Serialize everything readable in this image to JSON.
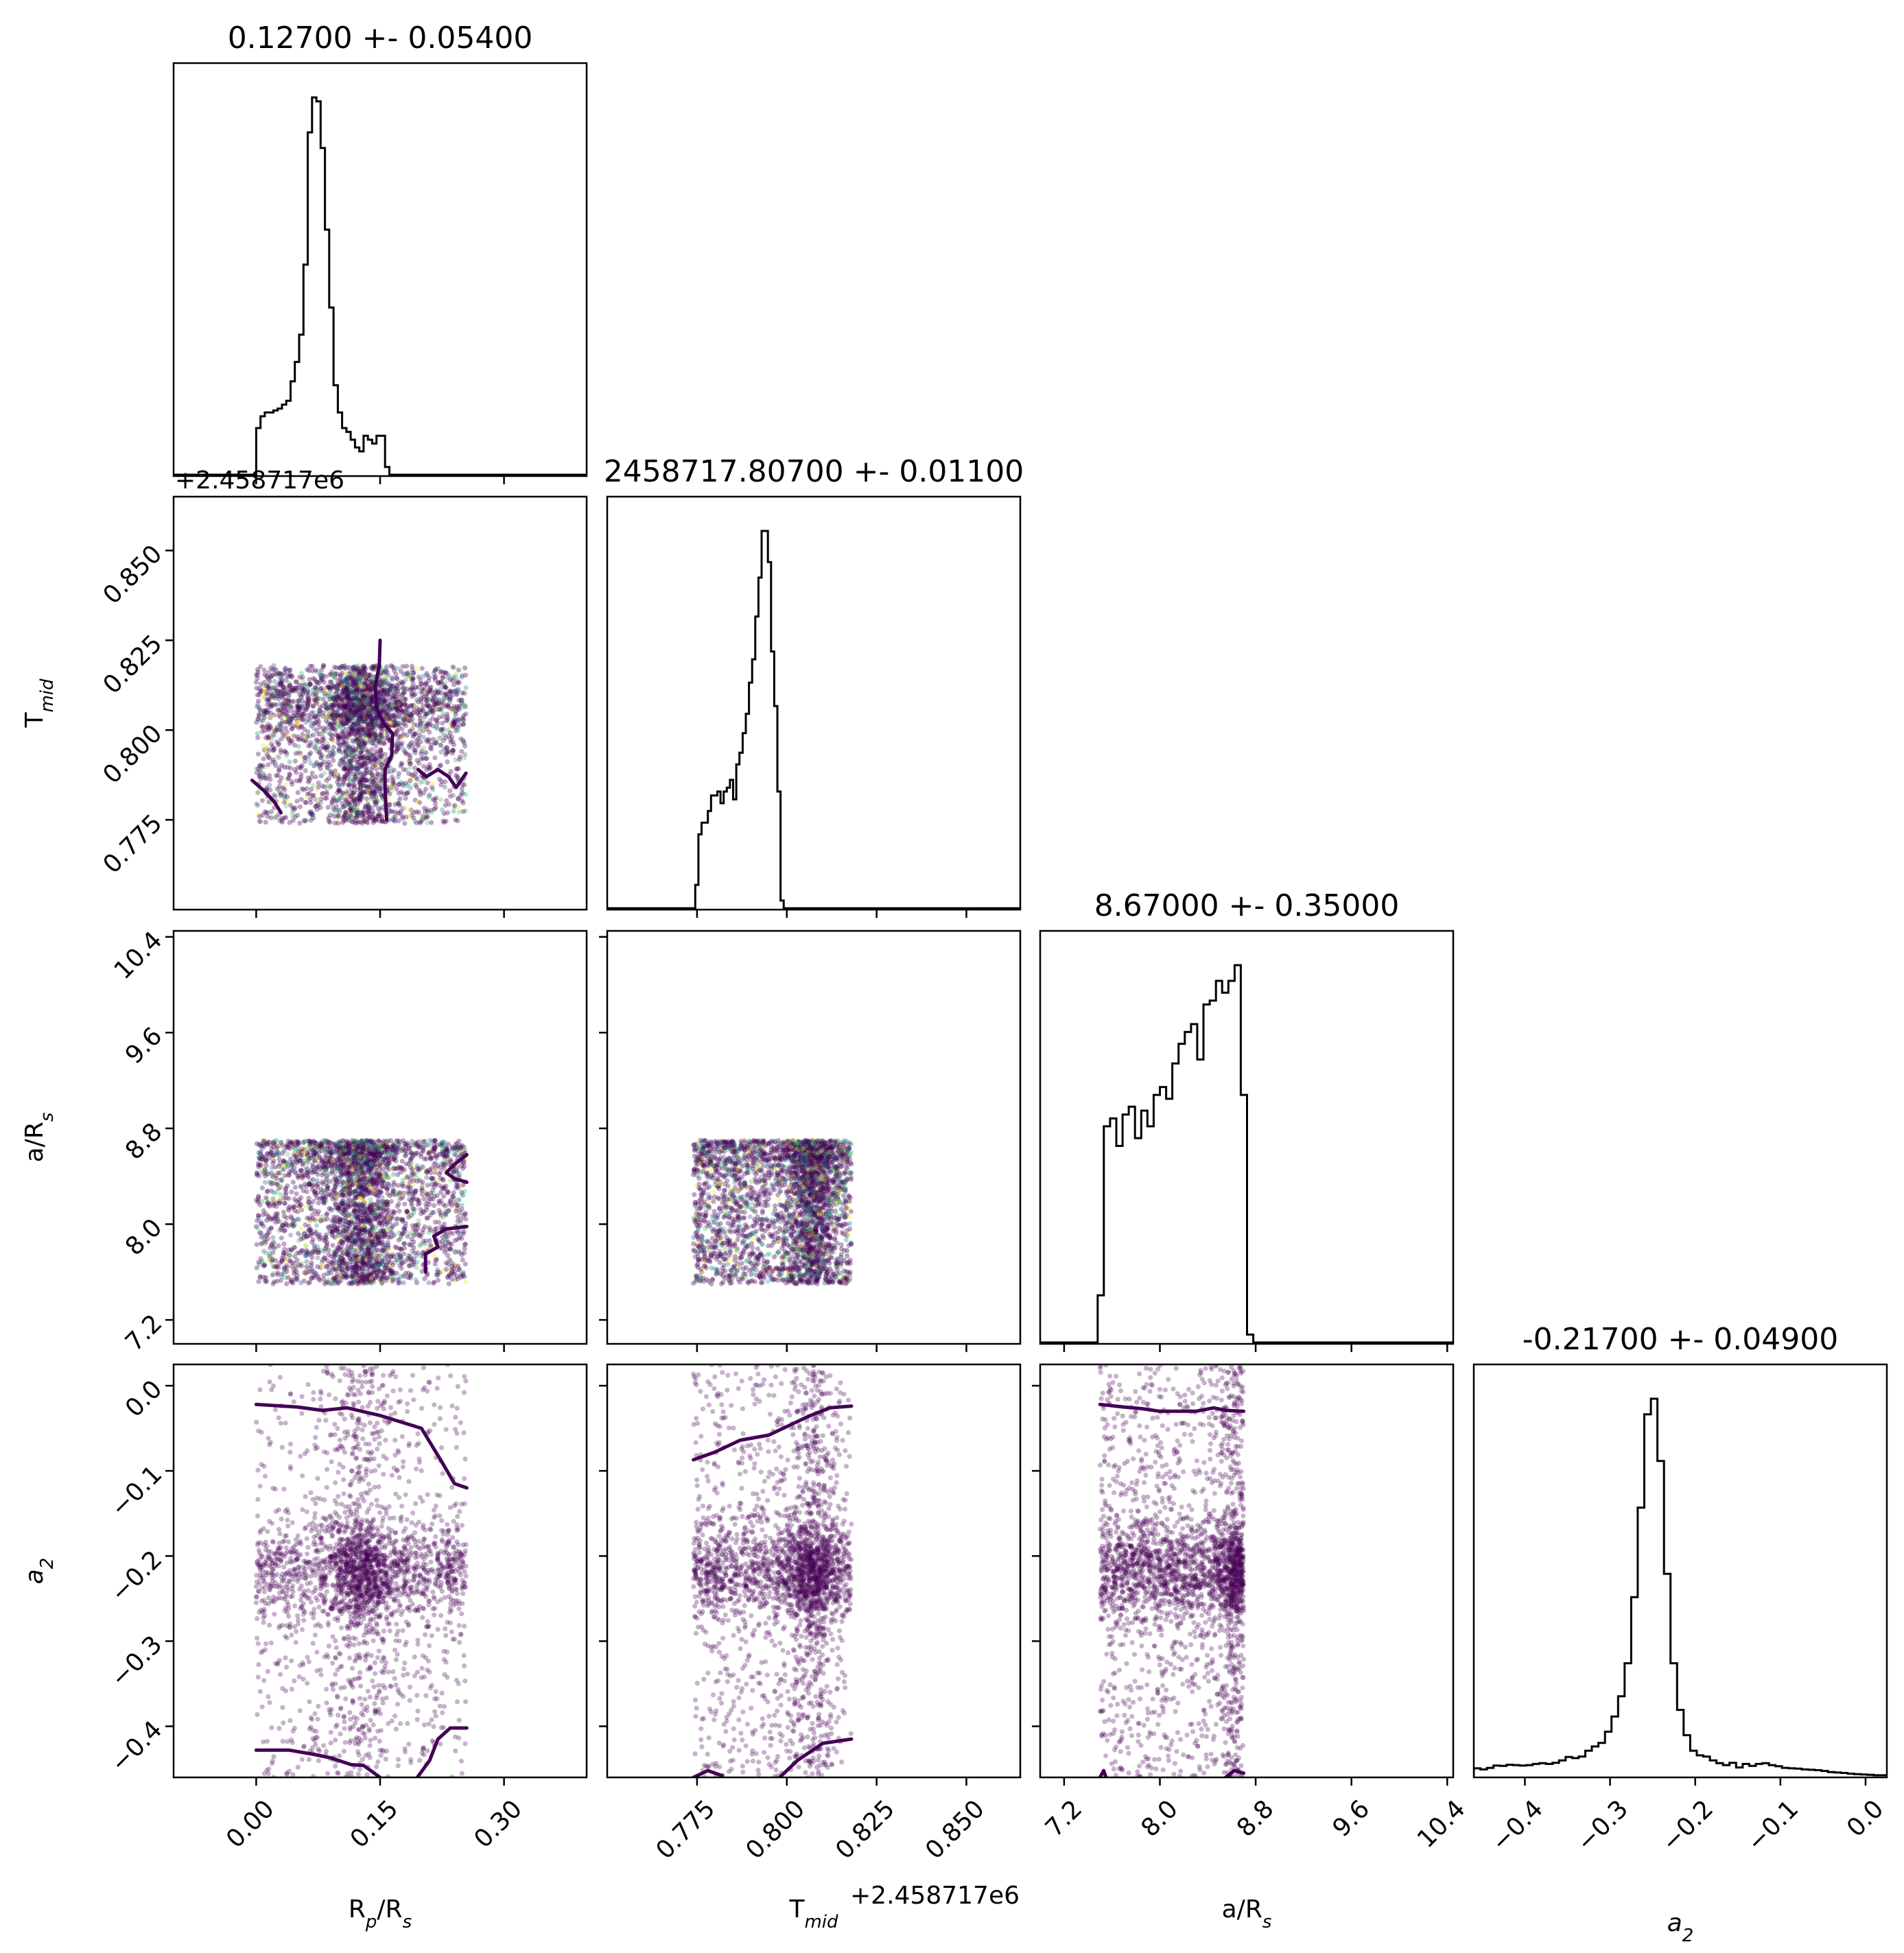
{
  "chart_data": {
    "type": "corner",
    "colors": {
      "axes": "#000000",
      "hist": "#000000",
      "contour": "#440154",
      "scatter_cmap": "viridis",
      "dense": "#440154"
    },
    "parameters": [
      {
        "key": "rp",
        "label": "R",
        "sub": "p",
        "label_tail": "/R",
        "sub2": "s",
        "range": [
          -0.1,
          0.4
        ],
        "ticks": [
          0.0,
          0.15,
          0.3
        ],
        "tick_labels": [
          "0.00",
          "0.15",
          "0.30"
        ],
        "title": "0.12700 +- 0.05400",
        "center": 0.127,
        "uniform": [
          0.0,
          0.254
        ]
      },
      {
        "key": "tmid",
        "label": "T",
        "sub": "mid",
        "label_tail": "",
        "sub2": "",
        "range": [
          0.75,
          0.865
        ],
        "ticks": [
          0.775,
          0.8,
          0.825,
          0.85
        ],
        "tick_labels": [
          "0.775",
          "0.800",
          "0.825",
          "0.850"
        ],
        "title": "2458717.80700 +- 0.01100",
        "center": 0.807,
        "uniform": [
          0.774,
          0.818
        ],
        "offset": "+2.458717e6"
      },
      {
        "key": "ars",
        "label": "a/R",
        "sub": "s",
        "label_tail": "",
        "sub2": "",
        "range": [
          7.0,
          10.45
        ],
        "ticks": [
          7.2,
          8.0,
          8.8,
          9.6,
          10.4
        ],
        "tick_labels": [
          "7.2",
          "8.0",
          "8.8",
          "9.6",
          "10.4"
        ],
        "title": "8.67000 +- 0.35000",
        "center": 8.67,
        "uniform": [
          7.5,
          8.7
        ]
      },
      {
        "key": "a2",
        "label": "a",
        "sub": "2",
        "label_tail": "",
        "sub2": "",
        "italic": true,
        "range": [
          -0.46,
          0.025
        ],
        "ticks": [
          -0.4,
          -0.3,
          -0.2,
          -0.1,
          0.0
        ],
        "tick_labels": [
          "−0.4",
          "−0.3",
          "−0.2",
          "−0.1",
          "0.0"
        ],
        "title": "-0.21700 +- 0.04900",
        "center": -0.217,
        "uniform": [
          -0.46,
          0.025
        ]
      }
    ],
    "histograms": [
      {
        "param": "rp",
        "edges_start": 0.0,
        "bin_width": 0.0052,
        "counts": [
          0.12,
          0.15,
          0.16,
          0.16,
          0.165,
          0.17,
          0.18,
          0.19,
          0.24,
          0.29,
          0.36,
          0.54,
          0.88,
          0.97,
          0.96,
          0.84,
          0.63,
          0.43,
          0.23,
          0.16,
          0.12,
          0.11,
          0.09,
          0.07,
          0.06,
          0.1,
          0.09,
          0.08,
          0.1,
          0.1,
          0.02
        ]
      },
      {
        "param": "tmid",
        "edges_start": 0.7745,
        "bin_width": 0.00088,
        "counts": [
          0.06,
          0.19,
          0.22,
          0.22,
          0.25,
          0.29,
          0.29,
          0.3,
          0.27,
          0.3,
          0.31,
          0.33,
          0.28,
          0.37,
          0.4,
          0.45,
          0.5,
          0.58,
          0.64,
          0.75,
          0.85,
          0.97,
          0.97,
          0.89,
          0.66,
          0.52,
          0.3,
          0.02
        ]
      },
      {
        "param": "ars",
        "edges_start": 7.48,
        "bin_width": 0.052,
        "counts": [
          0.12,
          0.55,
          0.57,
          0.5,
          0.58,
          0.6,
          0.52,
          0.59,
          0.55,
          0.63,
          0.65,
          0.62,
          0.71,
          0.76,
          0.79,
          0.81,
          0.72,
          0.86,
          0.87,
          0.92,
          0.89,
          0.92,
          0.96,
          0.63,
          0.02
        ]
      },
      {
        "param": "a2",
        "edges_start": -0.46,
        "bin_width": 0.0077,
        "counts": [
          0.02,
          0.017,
          0.021,
          0.027,
          0.026,
          0.029,
          0.028,
          0.027,
          0.028,
          0.031,
          0.033,
          0.031,
          0.034,
          0.04,
          0.049,
          0.046,
          0.05,
          0.065,
          0.076,
          0.085,
          0.114,
          0.153,
          0.205,
          0.29,
          0.46,
          0.69,
          0.93,
          0.97,
          0.81,
          0.52,
          0.29,
          0.17,
          0.105,
          0.065,
          0.053,
          0.05,
          0.04,
          0.033,
          0.028,
          0.034,
          0.022,
          0.031,
          0.026,
          0.031,
          0.033,
          0.028,
          0.025,
          0.021,
          0.02,
          0.019,
          0.017,
          0.016,
          0.015,
          0.013,
          0.01,
          0.009,
          0.008,
          0.006,
          0.005,
          0.004,
          0.003,
          0.002,
          0.002,
          0.001,
          0.001
        ]
      }
    ],
    "contours": [
      {
        "row": 1,
        "col": 0,
        "paths": [
          [
            [
              0.15,
              0.825
            ],
            [
              0.149,
              0.818
            ],
            [
              0.144,
              0.812
            ],
            [
              0.146,
              0.806
            ],
            [
              0.154,
              0.802
            ],
            [
              0.165,
              0.799
            ],
            [
              0.164,
              0.793
            ],
            [
              0.156,
              0.789
            ],
            [
              0.156,
              0.784
            ],
            [
              0.157,
              0.779
            ],
            [
              0.158,
              0.775
            ]
          ],
          [
            [
              0.196,
              0.789
            ],
            [
              0.206,
              0.787
            ],
            [
              0.22,
              0.789
            ],
            [
              0.233,
              0.787
            ],
            [
              0.242,
              0.784
            ],
            [
              0.254,
              0.788
            ]
          ],
          [
            [
              -0.005,
              0.786
            ],
            [
              0.01,
              0.783
            ],
            [
              0.022,
              0.78
            ],
            [
              0.03,
              0.777
            ]
          ]
        ]
      },
      {
        "row": 2,
        "col": 0,
        "paths": [
          [
            [
              0.255,
              8.58
            ],
            [
              0.24,
              8.5
            ],
            [
              0.23,
              8.43
            ],
            [
              0.24,
              8.38
            ],
            [
              0.255,
              8.35
            ]
          ],
          [
            [
              0.255,
              7.98
            ],
            [
              0.23,
              7.96
            ],
            [
              0.215,
              7.9
            ],
            [
              0.22,
              7.81
            ],
            [
              0.205,
              7.75
            ],
            [
              0.205,
              7.6
            ]
          ]
        ]
      },
      {
        "row": 3,
        "col": 0,
        "paths": [
          [
            [
              0.0,
              -0.022
            ],
            [
              0.05,
              -0.025
            ],
            [
              0.08,
              -0.029
            ],
            [
              0.11,
              -0.026
            ],
            [
              0.15,
              -0.035
            ],
            [
              0.2,
              -0.05
            ],
            [
              0.225,
              -0.09
            ],
            [
              0.24,
              -0.115
            ],
            [
              0.255,
              -0.12
            ]
          ],
          [
            [
              0.0,
              -0.428
            ],
            [
              0.04,
              -0.428
            ],
            [
              0.07,
              -0.433
            ],
            [
              0.09,
              -0.437
            ],
            [
              0.115,
              -0.445
            ],
            [
              0.13,
              -0.446
            ],
            [
              0.15,
              -0.46
            ]
          ],
          [
            [
              0.195,
              -0.46
            ],
            [
              0.21,
              -0.44
            ],
            [
              0.22,
              -0.415
            ],
            [
              0.235,
              -0.402
            ],
            [
              0.255,
              -0.402
            ]
          ]
        ]
      },
      {
        "row": 3,
        "col": 1,
        "paths": [
          [
            [
              0.774,
              -0.087
            ],
            [
              0.78,
              -0.078
            ],
            [
              0.787,
              -0.064
            ],
            [
              0.795,
              -0.058
            ],
            [
              0.801,
              -0.046
            ],
            [
              0.806,
              -0.036
            ],
            [
              0.812,
              -0.026
            ],
            [
              0.818,
              -0.024
            ]
          ],
          [
            [
              0.774,
              -0.46
            ],
            [
              0.778,
              -0.452
            ],
            [
              0.782,
              -0.458
            ]
          ],
          [
            [
              0.798,
              -0.46
            ],
            [
              0.803,
              -0.44
            ],
            [
              0.81,
              -0.42
            ],
            [
              0.818,
              -0.415
            ]
          ]
        ]
      },
      {
        "row": 3,
        "col": 2,
        "paths": [
          [
            [
              7.5,
              -0.022
            ],
            [
              7.7,
              -0.025
            ],
            [
              7.85,
              -0.027
            ],
            [
              8.0,
              -0.03
            ],
            [
              8.15,
              -0.03
            ],
            [
              8.3,
              -0.03
            ],
            [
              8.45,
              -0.026
            ],
            [
              8.55,
              -0.029
            ],
            [
              8.7,
              -0.03
            ]
          ],
          [
            [
              7.5,
              -0.46
            ],
            [
              7.53,
              -0.452
            ],
            [
              7.55,
              -0.46
            ]
          ],
          [
            [
              8.55,
              -0.46
            ],
            [
              8.62,
              -0.452
            ],
            [
              8.7,
              -0.455
            ]
          ]
        ]
      }
    ],
    "offset_labels": [
      "+2.458717e6",
      "+2.458717e6"
    ]
  }
}
